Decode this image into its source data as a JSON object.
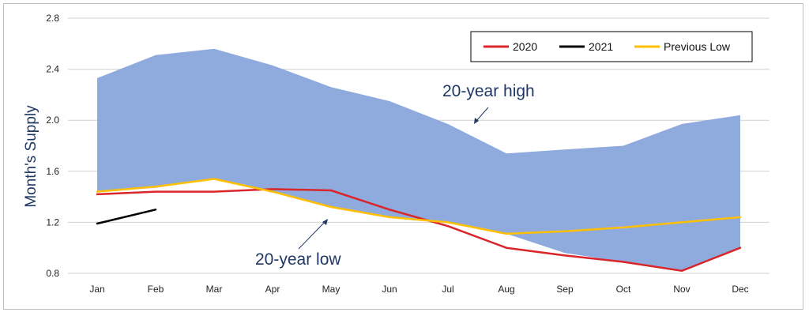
{
  "chart_data": {
    "type": "area",
    "categories": [
      "Jan",
      "Feb",
      "Mar",
      "Apr",
      "May",
      "Jun",
      "Jul",
      "Aug",
      "Sep",
      "Oct",
      "Nov",
      "Dec"
    ],
    "ylabel": "Month's Supply",
    "ylim": [
      0.8,
      2.8
    ],
    "yticks": [
      "0.8",
      "1.2",
      "1.6",
      "2.0",
      "2.4",
      "2.8"
    ],
    "grid": true,
    "legend_position": "top-right",
    "band": {
      "high": [
        2.33,
        2.51,
        2.56,
        2.43,
        2.26,
        2.15,
        1.97,
        1.74,
        1.77,
        1.8,
        1.97,
        2.04
      ],
      "low": [
        1.44,
        1.47,
        1.54,
        1.44,
        1.32,
        1.24,
        1.2,
        1.11,
        0.96,
        0.89,
        0.82,
        1.0
      ],
      "color": "#8faadc"
    },
    "series": [
      {
        "name": "2020",
        "color": "#d9262a",
        "values": [
          1.42,
          1.44,
          1.44,
          1.46,
          1.45,
          1.3,
          1.17,
          1.0,
          0.94,
          0.89,
          0.82,
          1.0
        ]
      },
      {
        "name": "2021",
        "color": "#000000",
        "values": [
          1.19,
          1.3,
          null,
          null,
          null,
          null,
          null,
          null,
          null,
          null,
          null,
          null
        ]
      },
      {
        "name": "Previous Low",
        "color": "#ffc000",
        "values": [
          1.44,
          1.48,
          1.54,
          1.44,
          1.32,
          1.24,
          1.2,
          1.11,
          1.13,
          1.16,
          1.2,
          1.24
        ]
      }
    ],
    "annotations": [
      {
        "text": "20-year high"
      },
      {
        "text": "20-year low"
      }
    ]
  }
}
